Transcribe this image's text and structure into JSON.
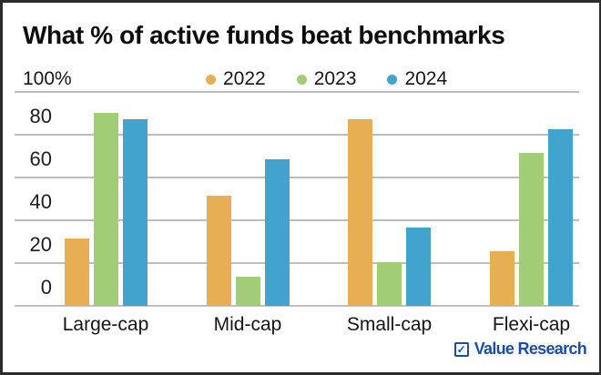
{
  "chart_data": {
    "type": "bar",
    "title": "What % of active funds beat benchmarks",
    "y_top_label": "100%",
    "categories": [
      "Large-cap",
      "Mid-cap",
      "Small-cap",
      "Flexi-cap"
    ],
    "series": [
      {
        "name": "2022",
        "color": "#E7AE53",
        "values": [
          31,
          51,
          87,
          25
        ]
      },
      {
        "name": "2023",
        "color": "#A1CD76",
        "values": [
          90,
          13,
          20,
          71
        ]
      },
      {
        "name": "2024",
        "color": "#42A3CC",
        "values": [
          87,
          68,
          36,
          82
        ]
      }
    ],
    "unit": "%",
    "ylim": [
      0,
      100
    ],
    "yticks": [
      0,
      20,
      40,
      60,
      80
    ],
    "grid": true,
    "legend_position": "top"
  },
  "footer": {
    "brand": "Value Research",
    "brand_icon_glyph": "✓",
    "brand_color": "#1B4DA1"
  },
  "colors": {
    "grid": "#BDBDBD",
    "text": "#161616",
    "border": "#2C2C2C",
    "background": "#FFFFFF"
  }
}
